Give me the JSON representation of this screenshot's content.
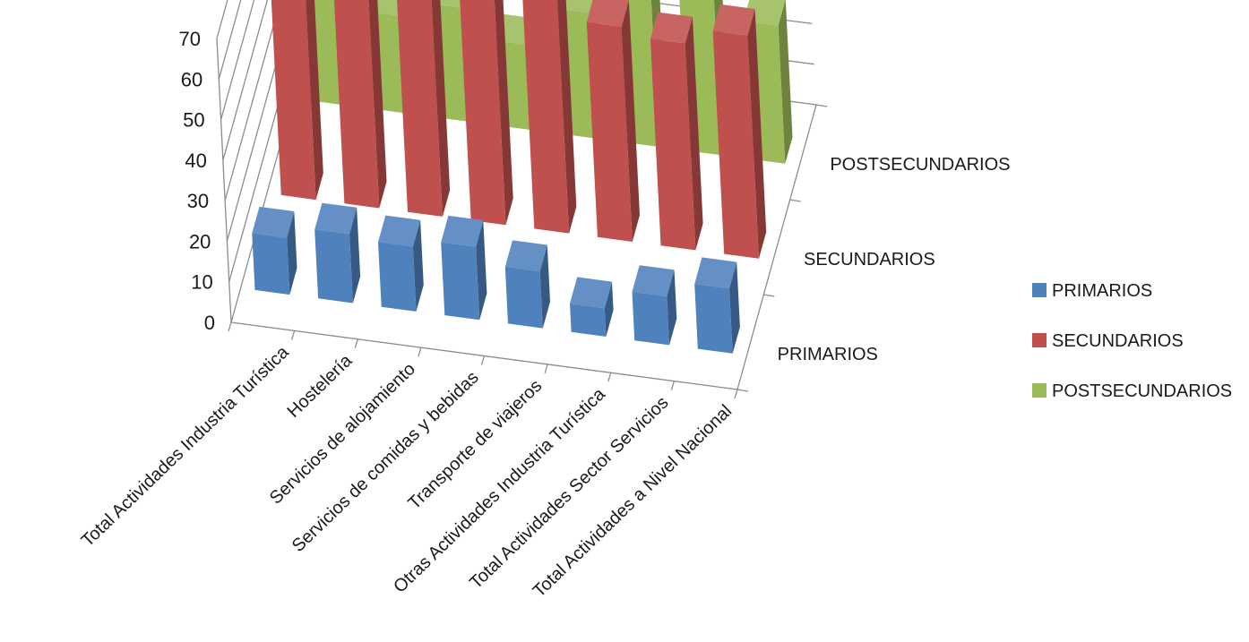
{
  "chart_data": {
    "type": "bar",
    "title": "",
    "xlabel": "",
    "ylabel": "",
    "ylim": [
      0,
      70
    ],
    "yticks": [
      "0",
      "10",
      "20",
      "30",
      "40",
      "50",
      "60",
      "70"
    ],
    "grid": true,
    "legend_position": "right",
    "categories": [
      "Total Actividades Industria Turística",
      "Hostelería",
      "Servicios de alojamiento",
      "Servicios de comidas y bebidas",
      "Transporte de viajeros",
      "Otras Actividades Industria Turística",
      "Total Actividades Sector Servicios",
      "Total Actividades a Nivel Nacional"
    ],
    "depth_labels": [
      "PRIMARIOS",
      "SECUNDARIOS",
      "POSTSECUNDARIOS"
    ],
    "series": [
      {
        "name": "PRIMARIOS",
        "color": "#4f81bd",
        "values": [
          14,
          17,
          16,
          18,
          14,
          7,
          12,
          16
        ]
      },
      {
        "name": "SECUNDARIOS",
        "color": "#c0504d",
        "values": [
          63,
          67,
          63,
          68,
          62,
          53,
          51,
          55
        ]
      },
      {
        "name": "POSTSECUNDARIOS",
        "color": "#9bbb59",
        "values": [
          31,
          24,
          28,
          21,
          31,
          44,
          42,
          34
        ]
      }
    ]
  }
}
